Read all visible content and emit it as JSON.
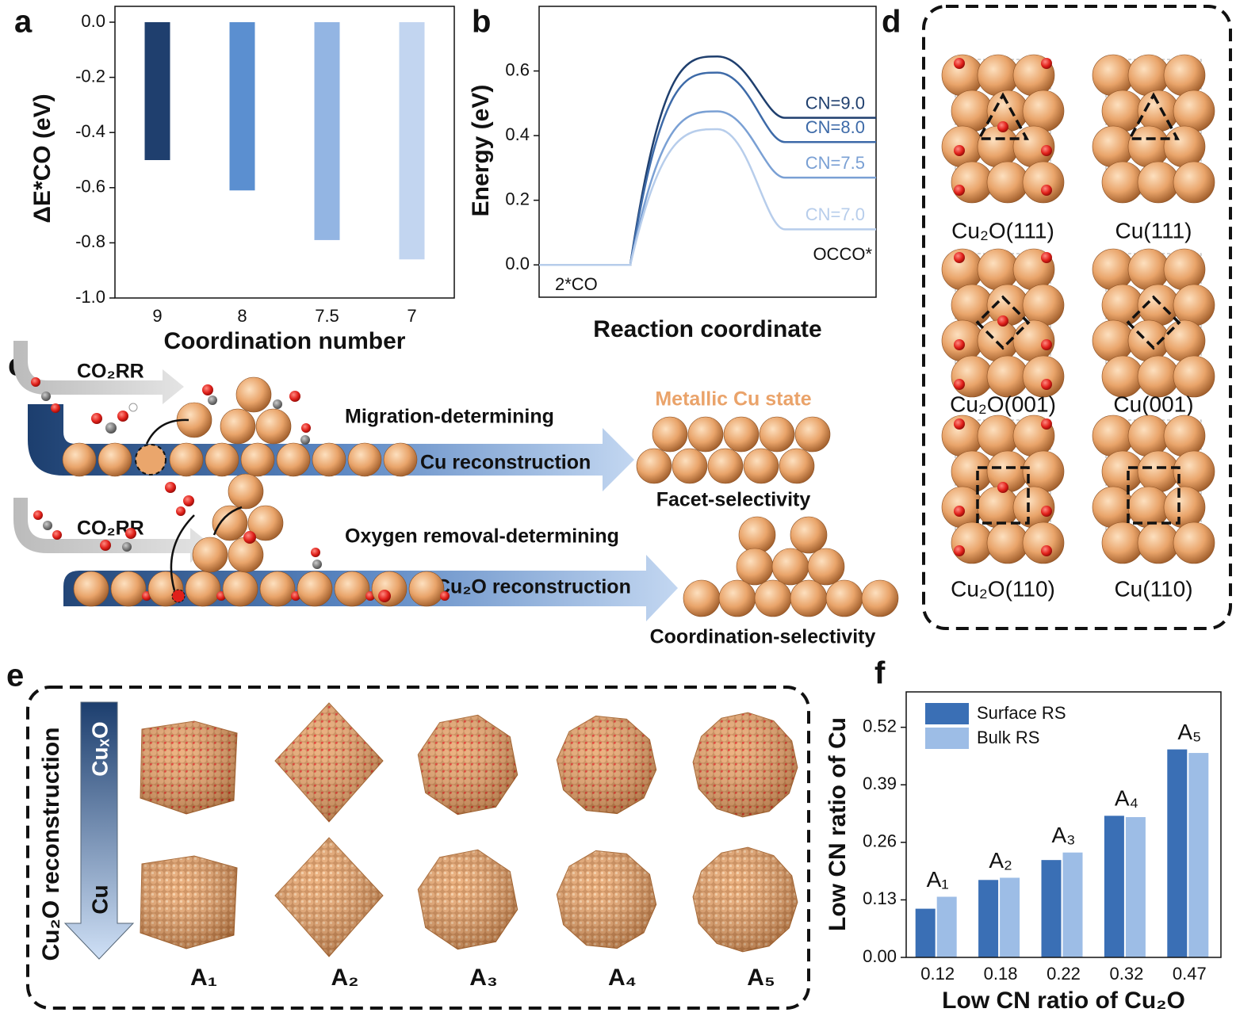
{
  "panel_labels": [
    "a",
    "b",
    "c",
    "d",
    "e",
    "f"
  ],
  "chart_data": [
    {
      "type": "bar",
      "ylabel": "ΔE*CO (eV)",
      "xlabel": "Coordination number",
      "categories": [
        "9",
        "8",
        "7.5",
        "7"
      ],
      "values": [
        -0.5,
        -0.61,
        -0.79,
        -0.86
      ],
      "colors": [
        "#1f3f6e",
        "#5b8fd0",
        "#93b5e3",
        "#c2d5f0"
      ],
      "ylim": [
        -1.0,
        0.0
      ],
      "yticks": [
        {
          "value": 0,
          "label": "0.0"
        },
        {
          "value": -0.2,
          "label": "-0.2"
        },
        {
          "value": -0.4,
          "label": "-0.4"
        },
        {
          "value": -0.6,
          "label": "-0.6"
        },
        {
          "value": -0.8,
          "label": "-0.8"
        },
        {
          "value": -1.0,
          "label": "-1.0"
        }
      ]
    },
    {
      "type": "line",
      "ylabel": "Energy (eV)",
      "xlabel": "Reaction coordinate",
      "annotations": [
        "2*CO",
        "OCCO*"
      ],
      "ylim": [
        -0.1,
        0.8
      ],
      "yticks": [
        {
          "value": 0,
          "label": "0.0"
        },
        {
          "value": 0.2,
          "label": "0.2"
        },
        {
          "value": 0.4,
          "label": "0.4"
        },
        {
          "value": 0.6,
          "label": "0.6"
        }
      ],
      "series": [
        {
          "name": "CN=9.0",
          "color": "#1f3f6e",
          "values": [
            0,
            0,
            0.645,
            0.455,
            0.455
          ]
        },
        {
          "name": "CN=8.0",
          "color": "#3d6aa8",
          "values": [
            0,
            0,
            0.595,
            0.38,
            0.38
          ]
        },
        {
          "name": "CN=7.5",
          "color": "#7aa0d4",
          "values": [
            0,
            0,
            0.475,
            0.27,
            0.27
          ]
        },
        {
          "name": "CN=7.0",
          "color": "#b7cdeb",
          "values": [
            0,
            0,
            0.42,
            0.11,
            0.11
          ]
        }
      ]
    },
    {
      "type": "grouped_bar",
      "ylabel": "Low CN ratio of Cu",
      "xlabel": "Low CN ratio of Cu₂O",
      "categories": [
        "0.12",
        "0.18",
        "0.22",
        "0.32",
        "0.47"
      ],
      "annotations": [
        "A₁",
        "A₂",
        "A₃",
        "A₄",
        "A₅"
      ],
      "series": [
        {
          "name": "Surface RS",
          "color": "#3a6fb5",
          "values": [
            0.11,
            0.175,
            0.22,
            0.32,
            0.47
          ]
        },
        {
          "name": "Bulk RS",
          "color": "#9dbde6",
          "values": [
            0.137,
            0.18,
            0.237,
            0.317,
            0.462
          ]
        }
      ],
      "ylim": [
        0,
        0.6
      ],
      "yticks": [
        {
          "value": 0,
          "label": "0.00"
        },
        {
          "value": 0.13,
          "label": "0.13"
        },
        {
          "value": 0.26,
          "label": "0.26"
        },
        {
          "value": 0.39,
          "label": "0.39"
        },
        {
          "value": 0.52,
          "label": "0.52"
        }
      ],
      "legend": "upper left"
    }
  ],
  "panel_c": {
    "co2rr_1": "CO₂RR",
    "migration": "Migration-determining",
    "cu_reconstruction": "Cu reconstruction",
    "metallic_state": "Metallic Cu state",
    "facet": "Facet-selectivity",
    "co2rr_2": "CO₂RR",
    "oxygen_removal": "Oxygen removal-determining",
    "cu2o_reconstruction": "Cu₂O reconstruction",
    "coordination": "Coordination-selectivity"
  },
  "panel_d": {
    "facets": [
      "Cu₂O(111)",
      "Cu(111)",
      "Cu₂O(001)",
      "Cu(001)",
      "Cu₂O(110)",
      "Cu(110)"
    ]
  },
  "panel_e": {
    "title": "Cu₂O reconstruction",
    "top": "CuₓO",
    "bottom": "Cu",
    "samples": [
      "A₁",
      "A₂",
      "A₃",
      "A₄",
      "A₅"
    ]
  }
}
